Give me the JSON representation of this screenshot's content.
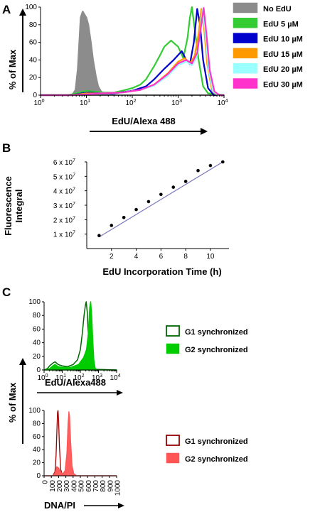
{
  "figure": {
    "panels": [
      {
        "letter": "A"
      },
      {
        "letter": "B"
      },
      {
        "letter": "C"
      }
    ]
  },
  "chart_data": [
    {
      "id": "A",
      "type": "area",
      "xlabel": "EdU/Alexa 488",
      "ylabel": "% of Max",
      "xscale": "log",
      "xlim": [
        1,
        10000
      ],
      "ylim": [
        0,
        100
      ],
      "x_tick_labels": [
        "10",
        "10",
        "10",
        "10",
        "10"
      ],
      "x_tick_exponents": [
        "0",
        "1",
        "2",
        "3",
        "4"
      ],
      "y_ticks": [
        0,
        20,
        40,
        60,
        80,
        100
      ],
      "legend_position": "right",
      "series": [
        {
          "name": "No EdU",
          "color": "#8c8c8c",
          "filled": true,
          "points": [
            [
              1,
              0
            ],
            [
              4,
              0
            ],
            [
              5,
              1
            ],
            [
              5.8,
              6
            ],
            [
              6.5,
              30
            ],
            [
              7,
              60
            ],
            [
              7.5,
              88
            ],
            [
              8.3,
              95
            ],
            [
              9,
              92
            ],
            [
              10,
              88
            ],
            [
              11,
              80
            ],
            [
              12.5,
              60
            ],
            [
              14,
              40
            ],
            [
              16,
              22
            ],
            [
              18,
              10
            ],
            [
              21,
              4
            ],
            [
              25,
              1
            ],
            [
              30,
              0
            ],
            [
              10000,
              0
            ]
          ]
        },
        {
          "name": "EdU 5 µM",
          "color": "#33cc33",
          "points": [
            [
              1,
              0
            ],
            [
              4,
              0
            ],
            [
              6,
              2
            ],
            [
              10,
              5
            ],
            [
              15,
              4
            ],
            [
              25,
              3
            ],
            [
              40,
              3
            ],
            [
              60,
              5
            ],
            [
              100,
              8
            ],
            [
              150,
              12
            ],
            [
              200,
              18
            ],
            [
              300,
              33
            ],
            [
              400,
              45
            ],
            [
              500,
              55
            ],
            [
              700,
              62
            ],
            [
              1000,
              55
            ],
            [
              1300,
              42
            ],
            [
              1600,
              65
            ],
            [
              1800,
              88
            ],
            [
              2000,
              100
            ],
            [
              2300,
              75
            ],
            [
              2800,
              40
            ],
            [
              3500,
              10
            ],
            [
              4500,
              2
            ],
            [
              10000,
              0
            ]
          ]
        },
        {
          "name": "EdU 10 µM",
          "color": "#0000cc",
          "points": [
            [
              1,
              0
            ],
            [
              5,
              0
            ],
            [
              8,
              2
            ],
            [
              12,
              3
            ],
            [
              20,
              2
            ],
            [
              40,
              2
            ],
            [
              100,
              5
            ],
            [
              200,
              10
            ],
            [
              300,
              18
            ],
            [
              500,
              30
            ],
            [
              800,
              40
            ],
            [
              1200,
              50
            ],
            [
              1500,
              40
            ],
            [
              1800,
              35
            ],
            [
              2200,
              60
            ],
            [
              2600,
              98
            ],
            [
              3000,
              80
            ],
            [
              3500,
              40
            ],
            [
              4500,
              8
            ],
            [
              6000,
              0
            ],
            [
              10000,
              0
            ]
          ]
        },
        {
          "name": "EdU 15 µM",
          "color": "#ff9900",
          "points": [
            [
              1,
              0
            ],
            [
              5,
              0
            ],
            [
              10,
              2
            ],
            [
              20,
              2
            ],
            [
              60,
              3
            ],
            [
              150,
              6
            ],
            [
              300,
              12
            ],
            [
              600,
              25
            ],
            [
              1000,
              38
            ],
            [
              1400,
              42
            ],
            [
              1800,
              36
            ],
            [
              2300,
              45
            ],
            [
              2800,
              70
            ],
            [
              3200,
              98
            ],
            [
              3700,
              75
            ],
            [
              4300,
              35
            ],
            [
              5500,
              5
            ],
            [
              7000,
              0
            ],
            [
              10000,
              0
            ]
          ]
        },
        {
          "name": "EdU 20 µM",
          "color": "#99ffff",
          "points": [
            [
              1,
              0
            ],
            [
              5,
              0
            ],
            [
              10,
              1
            ],
            [
              20,
              2
            ],
            [
              60,
              3
            ],
            [
              150,
              6
            ],
            [
              300,
              11
            ],
            [
              600,
              22
            ],
            [
              1000,
              34
            ],
            [
              1500,
              38
            ],
            [
              2000,
              34
            ],
            [
              2500,
              42
            ],
            [
              3000,
              70
            ],
            [
              3400,
              97
            ],
            [
              3900,
              72
            ],
            [
              4600,
              30
            ],
            [
              5800,
              4
            ],
            [
              7500,
              0
            ],
            [
              10000,
              0
            ]
          ]
        },
        {
          "name": "EdU 30 µM",
          "color": "#ff33cc",
          "points": [
            [
              1,
              0
            ],
            [
              5,
              0
            ],
            [
              10,
              1
            ],
            [
              20,
              2
            ],
            [
              60,
              3
            ],
            [
              150,
              6
            ],
            [
              300,
              12
            ],
            [
              600,
              24
            ],
            [
              1000,
              36
            ],
            [
              1500,
              40
            ],
            [
              2000,
              36
            ],
            [
              2600,
              48
            ],
            [
              3100,
              75
            ],
            [
              3600,
              99
            ],
            [
              4100,
              72
            ],
            [
              4900,
              28
            ],
            [
              6200,
              4
            ],
            [
              8000,
              0
            ],
            [
              10000,
              0
            ]
          ]
        }
      ]
    },
    {
      "id": "B",
      "type": "scatter",
      "xlabel": "EdU Incorporation Time (h)",
      "ylabel": "Fluorescence Integral",
      "xlim": [
        0,
        11.5
      ],
      "ylim": [
        0,
        60000000
      ],
      "x_ticks": [
        2,
        4,
        6,
        8,
        10
      ],
      "y_ticks": [
        10000000,
        20000000,
        30000000,
        40000000,
        50000000,
        60000000
      ],
      "y_tick_mantissas": [
        "1 x 10",
        "2 x 10",
        "3 x 10",
        "4 x 10",
        "5 x 10",
        "6 x 10"
      ],
      "y_tick_exponent": "7",
      "point_color": "#000000",
      "fit_color": "#7777bb",
      "fit_line": [
        [
          1,
          8000000
        ],
        [
          11,
          60000000
        ]
      ],
      "points": [
        [
          1,
          9000000
        ],
        [
          2,
          16000000
        ],
        [
          3,
          21500000
        ],
        [
          4,
          27000000
        ],
        [
          5,
          32500000
        ],
        [
          6,
          37500000
        ],
        [
          7,
          42500000
        ],
        [
          8,
          46500000
        ],
        [
          9,
          54000000
        ],
        [
          10,
          57500000
        ],
        [
          11,
          60000000
        ]
      ]
    },
    {
      "id": "C1",
      "type": "area",
      "xlabel": "EdU/Alexa488",
      "ylabel": "% of Max",
      "xscale": "log",
      "xlim": [
        1,
        10000
      ],
      "ylim": [
        0,
        100
      ],
      "x_tick_labels": [
        "10",
        "10",
        "10",
        "10",
        "10"
      ],
      "x_tick_exponents": [
        "0",
        "1",
        "2",
        "3",
        "4"
      ],
      "y_ticks": [
        0,
        20,
        40,
        60,
        80,
        100
      ],
      "legend_position": "right",
      "series": [
        {
          "name": "G1 synchronized",
          "color": "#006600",
          "filled": false,
          "points": [
            [
              1,
              0
            ],
            [
              1.5,
              2
            ],
            [
              2,
              6
            ],
            [
              3,
              10
            ],
            [
              4,
              12
            ],
            [
              6,
              8
            ],
            [
              10,
              6
            ],
            [
              20,
              5
            ],
            [
              40,
              8
            ],
            [
              70,
              15
            ],
            [
              100,
              30
            ],
            [
              130,
              55
            ],
            [
              160,
              80
            ],
            [
              190,
              95
            ],
            [
              210,
              100
            ],
            [
              240,
              85
            ],
            [
              280,
              50
            ],
            [
              320,
              20
            ],
            [
              380,
              5
            ],
            [
              500,
              1
            ],
            [
              10000,
              0
            ]
          ]
        },
        {
          "name": "G2 synchronized",
          "color": "#00cc00",
          "filled": true,
          "points": [
            [
              1,
              0
            ],
            [
              2,
              2
            ],
            [
              3,
              6
            ],
            [
              4,
              8
            ],
            [
              6,
              5
            ],
            [
              10,
              4
            ],
            [
              30,
              4
            ],
            [
              80,
              8
            ],
            [
              150,
              18
            ],
            [
              220,
              30
            ],
            [
              280,
              55
            ],
            [
              330,
              92
            ],
            [
              370,
              100
            ],
            [
              420,
              80
            ],
            [
              480,
              45
            ],
            [
              550,
              15
            ],
            [
              650,
              3
            ],
            [
              800,
              0
            ],
            [
              10000,
              0
            ]
          ]
        }
      ]
    },
    {
      "id": "C2",
      "type": "area",
      "xlabel": "DNA/PI",
      "ylabel": "% of Max",
      "xlim": [
        0,
        1000
      ],
      "ylim": [
        0,
        100
      ],
      "x_ticks": [
        0,
        100,
        200,
        300,
        400,
        500,
        600,
        700,
        800,
        900,
        1000
      ],
      "y_ticks": [
        0,
        20,
        40,
        60,
        80,
        100
      ],
      "legend_position": "right",
      "series": [
        {
          "name": "G1 synchronized",
          "color": "#990000",
          "filled": false,
          "points": [
            [
              0,
              0
            ],
            [
              120,
              0
            ],
            [
              150,
              6
            ],
            [
              165,
              30
            ],
            [
              178,
              75
            ],
            [
              185,
              97
            ],
            [
              192,
              100
            ],
            [
              200,
              85
            ],
            [
              212,
              45
            ],
            [
              228,
              10
            ],
            [
              250,
              2
            ],
            [
              300,
              0
            ],
            [
              1000,
              0
            ]
          ]
        },
        {
          "name": "G2 synchronized",
          "color": "#ff5555",
          "filled": true,
          "points": [
            [
              0,
              0
            ],
            [
              120,
              0
            ],
            [
              150,
              4
            ],
            [
              175,
              14
            ],
            [
              200,
              12
            ],
            [
              230,
              5
            ],
            [
              260,
              3
            ],
            [
              290,
              8
            ],
            [
              315,
              35
            ],
            [
              330,
              80
            ],
            [
              342,
              98
            ],
            [
              352,
              90
            ],
            [
              365,
              55
            ],
            [
              385,
              15
            ],
            [
              410,
              3
            ],
            [
              450,
              0
            ],
            [
              1000,
              0
            ]
          ]
        }
      ]
    }
  ]
}
